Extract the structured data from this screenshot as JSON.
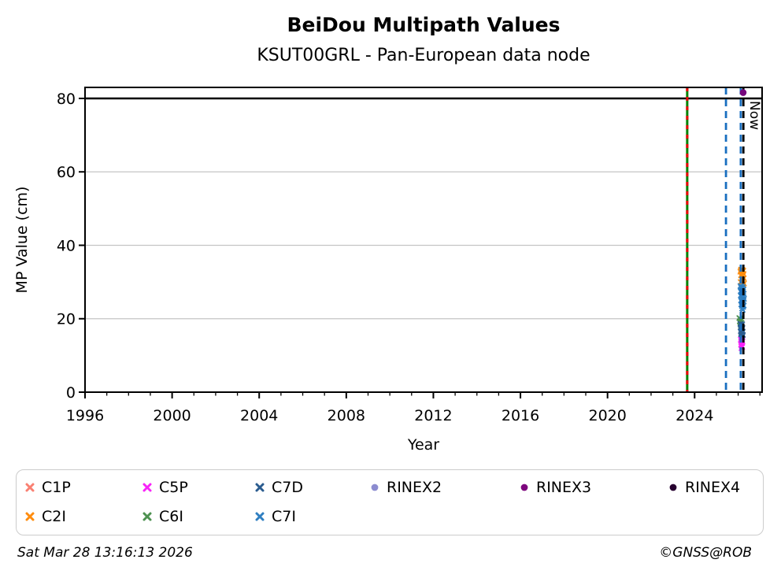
{
  "footer": {
    "timestamp": "Sat Mar 28 13:16:13 2026",
    "copyright": "©GNSS@ROB"
  },
  "chart_data": {
    "type": "scatter",
    "title": "BeiDou Multipath Values",
    "subtitle": "KSUT00GRL - Pan-European data node",
    "xlabel": "Year",
    "ylabel": "MP Value (cm)",
    "xlim": [
      1996,
      2027.1
    ],
    "ylim": [
      0,
      83
    ],
    "x_major_ticks": [
      1996,
      2000,
      2004,
      2008,
      2012,
      2016,
      2020,
      2024
    ],
    "x_tick_labels": [
      "1996",
      "2000",
      "2004",
      "2008",
      "2012",
      "2016",
      "2020",
      "2024"
    ],
    "x_minor_tick_step": 1,
    "y_ticks": [
      0,
      20,
      40,
      60,
      80
    ],
    "y_tick_labels": [
      "0",
      "20",
      "40",
      "60",
      "80"
    ],
    "grid": {
      "horizontal_at": [
        20,
        40,
        60
      ],
      "color": "#c4c4c4"
    },
    "hline": {
      "y": 80,
      "color": "#000000"
    },
    "vlines": [
      {
        "x": 2023.66,
        "type": "dual",
        "color_main": "#008000",
        "color_dash": "#e80000",
        "label": ""
      },
      {
        "x": 2025.44,
        "type": "dashed",
        "color": "#1a6fc0",
        "label": ""
      },
      {
        "x": 2026.12,
        "type": "dashed",
        "color": "#1a6fc0",
        "label": ""
      },
      {
        "x": 2026.24,
        "type": "dashed",
        "color": "#000000",
        "label": "Now"
      }
    ],
    "legend": [
      {
        "label": "C1P",
        "marker": "x",
        "color": "#f98072",
        "col": 0,
        "row": 0
      },
      {
        "label": "C2I",
        "marker": "x",
        "color": "#ff8c0d",
        "col": 0,
        "row": 1
      },
      {
        "label": "C5P",
        "marker": "x",
        "color": "#f823f8",
        "col": 1,
        "row": 0
      },
      {
        "label": "C6I",
        "marker": "x",
        "color": "#4d9150",
        "col": 1,
        "row": 1
      },
      {
        "label": "C7D",
        "marker": "x",
        "color": "#2b5c8f",
        "col": 2,
        "row": 0
      },
      {
        "label": "C7I",
        "marker": "x",
        "color": "#2f7fc1",
        "col": 2,
        "row": 1
      },
      {
        "label": "RINEX2",
        "marker": "dot",
        "color": "#8c8cd0",
        "col": 3,
        "row": 0
      },
      {
        "label": "RINEX3",
        "marker": "dot",
        "color": "#7d067d",
        "col": 4,
        "row": 0
      },
      {
        "label": "RINEX4",
        "marker": "dot",
        "color": "#270130",
        "col": 5,
        "row": 0
      }
    ],
    "series": [
      {
        "name": "C2I",
        "marker": "x",
        "color": "#ff8c0d",
        "points": [
          [
            2026.1,
            32.8
          ],
          [
            2026.12,
            33.2
          ],
          [
            2026.14,
            33.4
          ],
          [
            2026.16,
            33.0
          ],
          [
            2026.18,
            32.5
          ],
          [
            2026.2,
            33.3
          ],
          [
            2026.22,
            32.9
          ],
          [
            2026.24,
            33.1
          ],
          [
            2026.13,
            31.8
          ],
          [
            2026.17,
            32.0
          ],
          [
            2026.21,
            31.5
          ],
          [
            2026.25,
            32.2
          ],
          [
            2026.15,
            30.9
          ],
          [
            2026.19,
            30.5
          ],
          [
            2026.23,
            30.2
          ],
          [
            2026.26,
            31.0
          ],
          [
            2026.11,
            30.0
          ],
          [
            2026.27,
            29.6
          ],
          [
            2026.22,
            29.4
          ],
          [
            2026.16,
            29.8
          ]
        ]
      },
      {
        "name": "C7I",
        "marker": "x",
        "color": "#2f7fc1",
        "points": [
          [
            2026.1,
            28.9
          ],
          [
            2026.13,
            28.5
          ],
          [
            2026.16,
            28.8
          ],
          [
            2026.19,
            28.2
          ],
          [
            2026.22,
            28.6
          ],
          [
            2026.25,
            28.0
          ],
          [
            2026.11,
            27.5
          ],
          [
            2026.14,
            27.2
          ],
          [
            2026.17,
            27.8
          ],
          [
            2026.2,
            27.0
          ],
          [
            2026.23,
            27.4
          ],
          [
            2026.26,
            26.8
          ],
          [
            2026.12,
            26.4
          ],
          [
            2026.15,
            26.0
          ],
          [
            2026.18,
            26.5
          ],
          [
            2026.21,
            25.7
          ],
          [
            2026.24,
            26.2
          ],
          [
            2026.27,
            25.4
          ],
          [
            2026.13,
            25.0
          ],
          [
            2026.16,
            24.6
          ],
          [
            2026.19,
            25.2
          ],
          [
            2026.22,
            24.3
          ],
          [
            2026.25,
            24.8
          ],
          [
            2026.14,
            23.9
          ],
          [
            2026.17,
            23.5
          ],
          [
            2026.2,
            24.0
          ],
          [
            2026.23,
            23.2
          ],
          [
            2026.26,
            23.6
          ],
          [
            2026.18,
            22.8
          ],
          [
            2026.21,
            22.4
          ]
        ]
      },
      {
        "name": "C6I",
        "marker": "x",
        "color": "#4d9150",
        "points": [
          [
            2026.05,
            20.2
          ],
          [
            2026.08,
            20.1
          ],
          [
            2026.11,
            19.8
          ],
          [
            2026.14,
            19.5
          ],
          [
            2026.1,
            19.0
          ],
          [
            2026.13,
            18.6
          ],
          [
            2026.16,
            18.9
          ],
          [
            2026.12,
            18.2
          ],
          [
            2026.15,
            17.8
          ],
          [
            2026.07,
            19.3
          ]
        ]
      },
      {
        "name": "C7D",
        "marker": "x",
        "color": "#2b5c8f",
        "points": [
          [
            2026.1,
            18.6
          ],
          [
            2026.13,
            18.3
          ],
          [
            2026.16,
            18.0
          ],
          [
            2026.19,
            18.5
          ],
          [
            2026.11,
            17.6
          ],
          [
            2026.14,
            17.3
          ],
          [
            2026.17,
            17.0
          ],
          [
            2026.2,
            17.5
          ],
          [
            2026.12,
            16.6
          ],
          [
            2026.15,
            16.3
          ],
          [
            2026.18,
            16.0
          ],
          [
            2026.21,
            16.5
          ],
          [
            2026.13,
            15.7
          ],
          [
            2026.16,
            15.4
          ],
          [
            2026.19,
            15.1
          ],
          [
            2026.22,
            15.6
          ],
          [
            2026.14,
            14.9
          ],
          [
            2026.17,
            14.7
          ]
        ]
      },
      {
        "name": "C5P",
        "marker": "x",
        "color": "#f823f8",
        "points": [
          [
            2026.12,
            14.3
          ],
          [
            2026.15,
            14.0
          ],
          [
            2026.18,
            14.2
          ],
          [
            2026.14,
            13.6
          ],
          [
            2026.17,
            13.3
          ],
          [
            2026.2,
            13.8
          ],
          [
            2026.13,
            12.9
          ],
          [
            2026.16,
            12.6
          ],
          [
            2026.19,
            12.3
          ],
          [
            2026.15,
            12.0
          ]
        ]
      },
      {
        "name": "RINEX3",
        "marker": "dot",
        "color": "#76067d",
        "size": 4.3,
        "points": [
          [
            2026.23,
            81.6
          ]
        ]
      },
      {
        "name": "C1P",
        "marker": "x",
        "color": "#f98072",
        "points": []
      },
      {
        "name": "RINEX2",
        "marker": "dot",
        "color": "#8c8cd0",
        "points": []
      },
      {
        "name": "RINEX4",
        "marker": "dot",
        "color": "#270130",
        "points": []
      }
    ],
    "now_label": "Now",
    "legend_position": "bottom",
    "notes": "black horizontal limit line at 80 cm; green/red vertical line ~2023.66; blue dashed vertical lines ~2025.44 and ~2026.12; black dashed Now line ~2026.24"
  }
}
